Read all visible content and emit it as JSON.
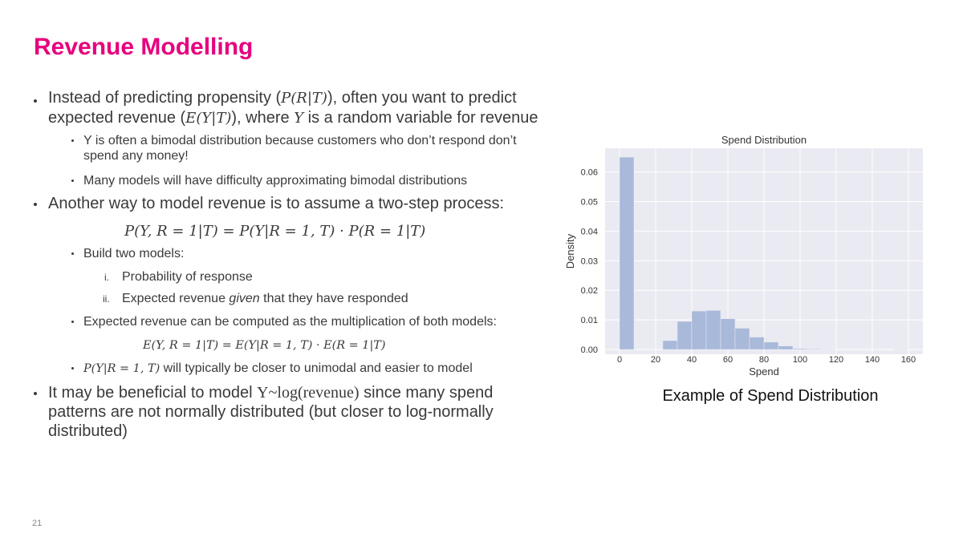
{
  "title": "Revenue Modelling",
  "bullets": [
    [
      "Instead of predicting propensity (",
      {
        "math": "P(R|T)"
      },
      "), often you want to predict expected revenue (",
      {
        "math": "E(Y|T)"
      },
      "), where ",
      {
        "math": "Y"
      },
      " is a random variable for revenue"
    ],
    [
      "Y is often a bimodal distribution because customers who don’t respond don’t spend any money!"
    ],
    [
      "Many models will have difficulty approximating bimodal distributions"
    ],
    [
      "Another way to model revenue is to assume a two-step process:"
    ],
    [
      {
        "math": "P(Y, R = 1|T) = P(Y|R = 1, T) · P(R = 1|T)"
      }
    ],
    [
      "Build two models:"
    ],
    [
      "Probability of response"
    ],
    [
      "Expected revenue ",
      {
        "em": "given"
      },
      " that they have responded"
    ],
    [
      "Expected revenue can be computed as the multiplication of both models:"
    ],
    [
      {
        "math": "E(Y, R = 1|T) = E(Y|R = 1, T) · E(R = 1|T)"
      }
    ],
    [
      {
        "math": "P(Y|R = 1, T)"
      },
      " will typically be closer to unimodal and easier to model"
    ],
    [
      "It may be beneficial to model ",
      {
        "rm": "Y~log(revenue)"
      },
      " since many spend patterns are not normally distributed (but closer to log-normally distributed)"
    ]
  ],
  "markers": [
    "i.",
    "ii."
  ],
  "caption": "Example of Spend Distribution",
  "page_number": "21",
  "chart_data": {
    "type": "histogram",
    "title": "Spend Distribution",
    "x_label": "Spend",
    "y_label": "Density",
    "bins": [
      0,
      8,
      16,
      24,
      32,
      40,
      48,
      56,
      64,
      72,
      80,
      88,
      96,
      104,
      112,
      120,
      128,
      136,
      144,
      152,
      160
    ],
    "values": [
      0.065,
      0,
      0,
      0.003,
      0.0095,
      0.013,
      0.0132,
      0.0104,
      0.0072,
      0.0042,
      0.0025,
      0.0012,
      0.0003,
      0.0002,
      0.0001,
      0,
      0,
      0,
      0,
      0.0001
    ],
    "color": "#a9b9d9",
    "background": "#eaeaf2",
    "grid": true,
    "xlim": [
      -8,
      168
    ],
    "ylim": [
      -0.0016,
      0.068
    ],
    "xticks": [
      0,
      20,
      40,
      60,
      80,
      100,
      120,
      140,
      160
    ],
    "yticks": [
      {
        "value": 0,
        "label": "0.00"
      },
      {
        "value": 0.01,
        "label": "0.01"
      },
      {
        "value": 0.02,
        "label": "0.02"
      },
      {
        "value": 0.03,
        "label": "0.03"
      },
      {
        "value": 0.04,
        "label": "0.04"
      },
      {
        "value": 0.05,
        "label": "0.05"
      },
      {
        "value": 0.06,
        "label": "0.06"
      }
    ]
  }
}
